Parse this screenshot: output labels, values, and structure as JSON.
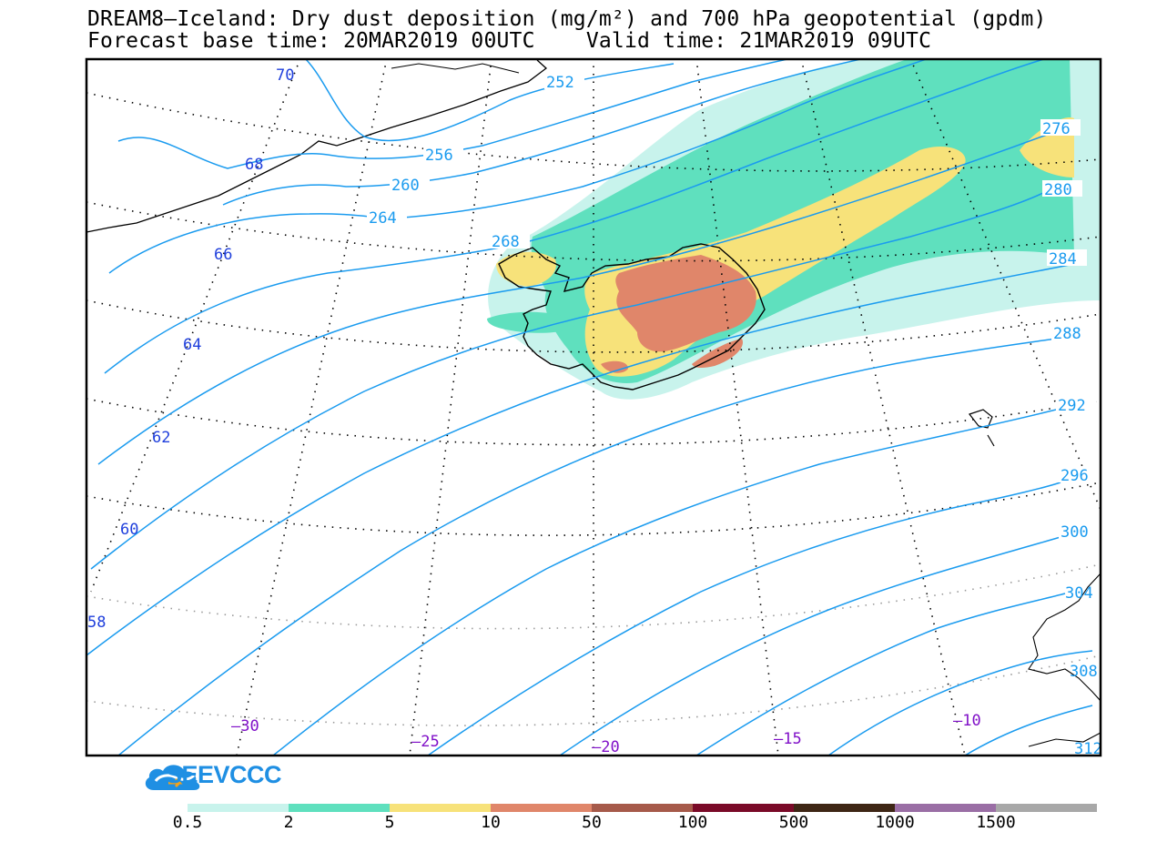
{
  "title": {
    "line1": "DREAM8—Iceland: Dry dust deposition (mg/m²) and 700 hPa geopotential (gpdm)",
    "line2": "Forecast base time: 20MAR2019 00UTC    Valid time: 21MAR2019 09UTC"
  },
  "contour_labels": {
    "c252": "252",
    "c256": "256",
    "c260": "260",
    "c264": "264",
    "c268": "268",
    "c276": "276",
    "c280": "280",
    "c284": "284",
    "c288": "288",
    "c292": "292",
    "c296": "296",
    "c300": "300",
    "c304": "304",
    "c308": "308",
    "c312": "312"
  },
  "lat_labels": {
    "l70": "70",
    "l68": "68",
    "l66": "66",
    "l64": "64",
    "l62": "62",
    "l60": "60",
    "l58": "58"
  },
  "lon_labels": {
    "m30": "–30",
    "m25": "–25",
    "m20": "–20",
    "m15": "–15",
    "m10": "–10"
  },
  "logo": {
    "text": "SEEVCCC",
    "icon": "cloud-logo-icon"
  },
  "colorbar": {
    "colors": [
      "#c8f3ec",
      "#5fe0be",
      "#f7e27a",
      "#e0866a",
      "#a65a4a",
      "#7a0a28",
      "#3e2615",
      "#9a6ea5",
      "#a8a8a8"
    ],
    "labels": [
      "0.5",
      "2",
      "5",
      "10",
      "50",
      "100",
      "500",
      "1000",
      "1500"
    ]
  },
  "colors": {
    "contour": "#1a9bef",
    "lat_label": "#1f3fdc",
    "lon_label": "#8010c8"
  }
}
